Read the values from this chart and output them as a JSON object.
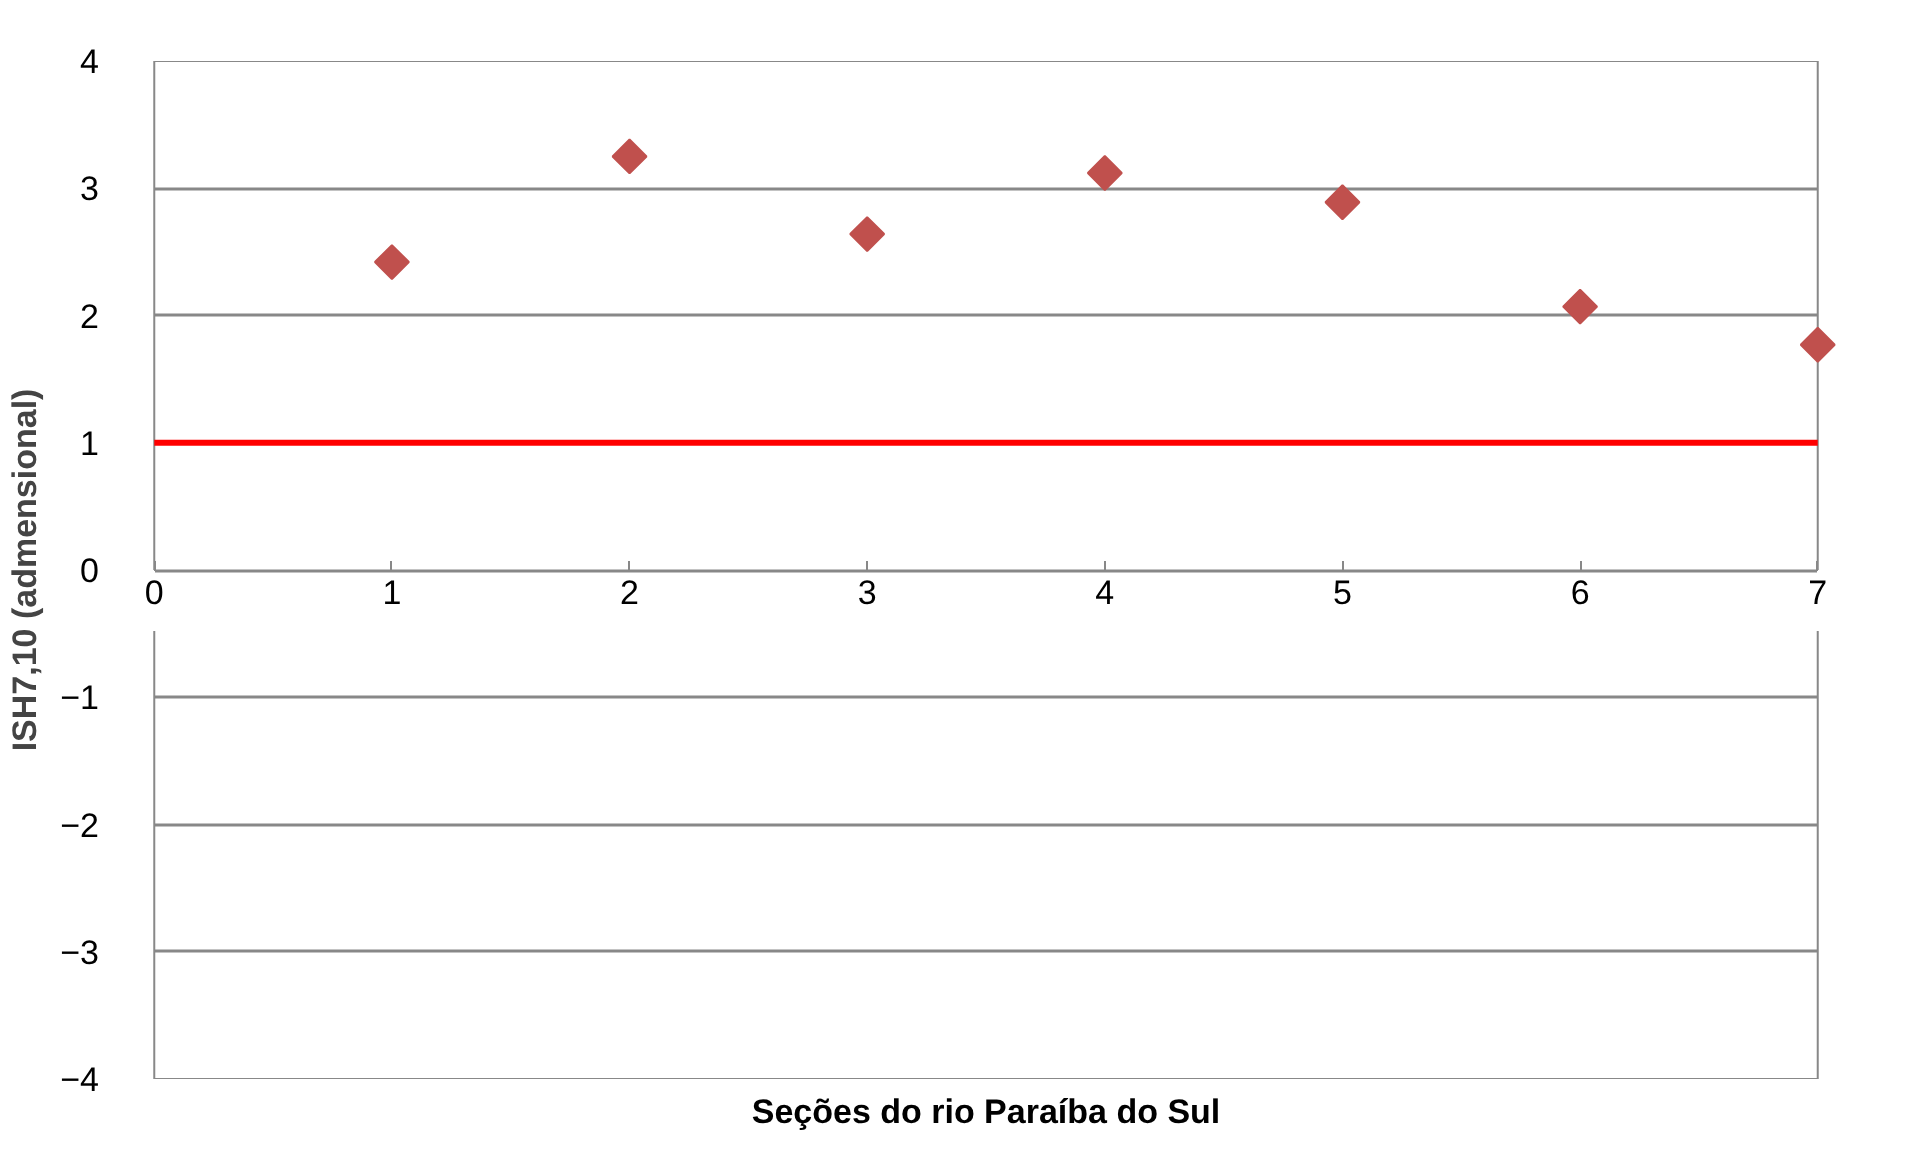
{
  "chart_data": {
    "type": "scatter",
    "xlabel": "Seções do rio Paraíba do Sul",
    "ylabel": "ISH7,10 (admensional)",
    "x": [
      1,
      2,
      3,
      4,
      5,
      6,
      7
    ],
    "series": [
      {
        "color": "#c0504d",
        "values": [
          2.42,
          3.25,
          2.64,
          3.12,
          2.89,
          2.07,
          1.77
        ]
      }
    ],
    "xlim": [
      0,
      7
    ],
    "ylim": [
      -4,
      4
    ],
    "xticks": [
      0,
      1,
      2,
      3,
      4,
      5,
      6,
      7
    ],
    "yticks": [
      -4,
      -3,
      -2,
      -1,
      0,
      1,
      2,
      3,
      4
    ],
    "ref_lines": [
      {
        "axis": "y",
        "value": 1,
        "color": "#ff0000",
        "line_style": "solid"
      }
    ],
    "grid": "y",
    "marker": "diamond"
  }
}
